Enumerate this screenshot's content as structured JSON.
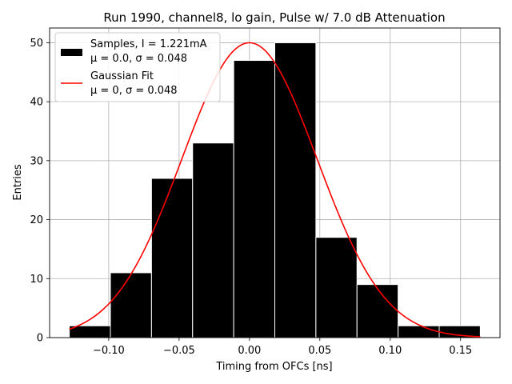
{
  "chart_data": {
    "type": "bar",
    "title": "Run 1990, channel8, lo gain, Pulse w/ 7.0 dB Attenuation",
    "xlabel": "Timing from OFCs [ns]",
    "ylabel": "Entries",
    "xlim": [
      -0.142,
      0.178
    ],
    "ylim": [
      0,
      52.5
    ],
    "grid": true,
    "x_ticks": [
      -0.1,
      -0.05,
      0.0,
      0.05,
      0.1,
      0.15
    ],
    "x_tick_labels": [
      "−0.10",
      "−0.05",
      "0.00",
      "0.05",
      "0.10",
      "0.15"
    ],
    "y_ticks": [
      0,
      10,
      20,
      30,
      40,
      50
    ],
    "y_tick_labels": [
      "0",
      "10",
      "20",
      "30",
      "40",
      "50"
    ],
    "bins": {
      "edges": [
        -0.128,
        -0.0988,
        -0.0696,
        -0.0404,
        -0.0112,
        0.018,
        0.0472,
        0.0764,
        0.1056,
        0.1348,
        0.164
      ],
      "counts": [
        2,
        11,
        27,
        33,
        47,
        50,
        17,
        9,
        2,
        2
      ],
      "color": "#000000",
      "edgecolor": "#ffffff"
    },
    "fit": {
      "type": "gaussian",
      "amplitude": 50,
      "mu": 0.0,
      "sigma": 0.048,
      "x_range": [
        -0.128,
        0.164
      ],
      "color": "#ff0000"
    },
    "legend": {
      "position": "top-left",
      "entries": [
        {
          "label_line1": "Samples, I = 1.221mA",
          "label_line2": "μ = 0.0, σ = 0.048",
          "swatch": "bar"
        },
        {
          "label_line1": "Gaussian Fit",
          "label_line2": "μ = 0, σ = 0.048",
          "swatch": "line"
        }
      ]
    }
  }
}
